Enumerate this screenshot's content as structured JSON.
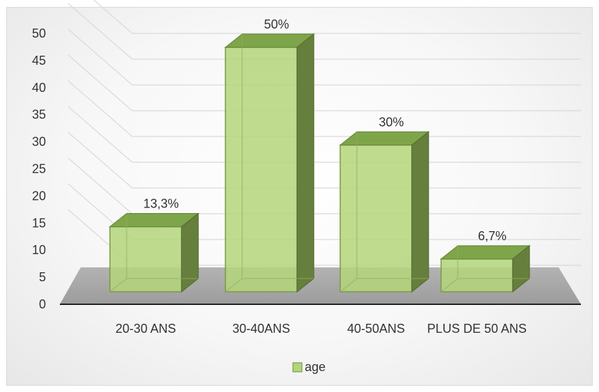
{
  "chart_data": {
    "type": "bar",
    "categories": [
      "20-30 ANS",
      "30-40ANS",
      "40-50ANS",
      "PLUS DE 50 ANS"
    ],
    "series": [
      {
        "name": "age",
        "values": [
          13.3,
          50,
          30,
          6.7
        ],
        "data_labels": [
          "13,3%",
          "50%",
          "30%",
          "6,7%"
        ],
        "color": "#b3d57a"
      }
    ],
    "y_ticks": [
      "0",
      "5",
      "10",
      "15",
      "20",
      "25",
      "30",
      "35",
      "40",
      "45",
      "50"
    ],
    "ylim": [
      0,
      50
    ],
    "grid": true,
    "legend_position": "bottom",
    "style": "3d-column"
  }
}
